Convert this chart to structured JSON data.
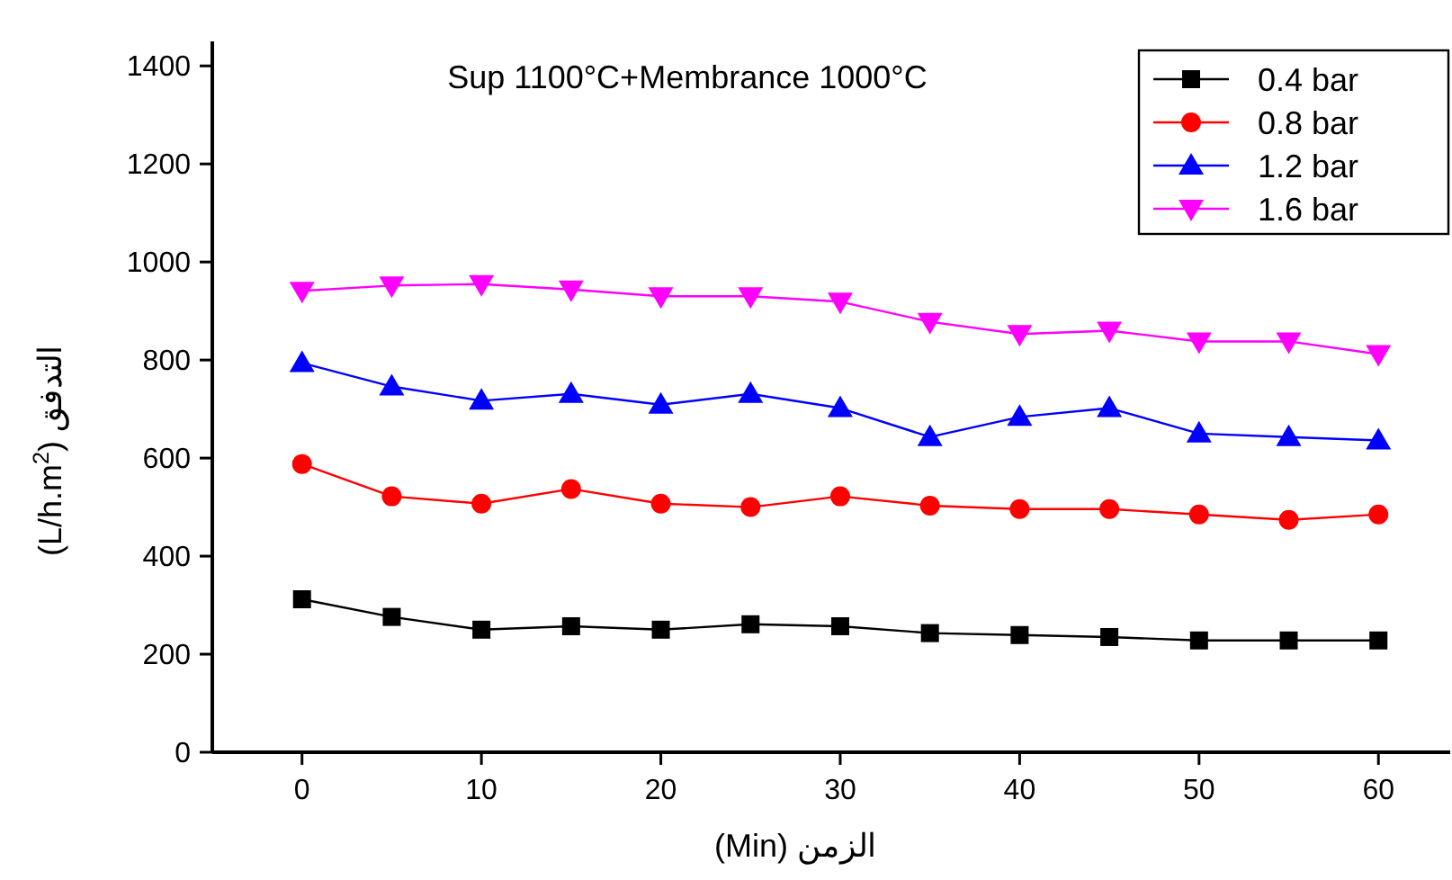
{
  "chart_data": {
    "type": "line",
    "title": "Sup 1100°C+Membrance 1000°C",
    "xlabel": "(Min) الزمن",
    "ylabel": "(L/h.m$^{2}$) التدفق",
    "x": [
      0,
      5,
      10,
      15,
      20,
      25,
      30,
      35,
      40,
      45,
      50,
      55,
      60
    ],
    "xlim": [
      -5,
      64
    ],
    "xticks": [
      0,
      10,
      20,
      30,
      40,
      50,
      60
    ],
    "ylim": [
      0,
      1450
    ],
    "yticks": [
      0,
      200,
      400,
      600,
      800,
      1000,
      1200,
      1400
    ],
    "grid": false,
    "legend": "top right",
    "line_style": "solid",
    "series": [
      {
        "name": "0.4 bar",
        "color": "#000000",
        "marker": "square",
        "values": [
          312,
          276,
          250,
          257,
          250,
          261,
          257,
          243,
          239,
          235,
          228,
          228,
          228
        ]
      },
      {
        "name": "0.8 bar",
        "color": "#ff0000",
        "marker": "circle",
        "values": [
          588,
          522,
          507,
          537,
          507,
          500,
          522,
          503,
          496,
          496,
          485,
          474,
          485
        ]
      },
      {
        "name": "1.2 bar",
        "color": "#0000ff",
        "marker": "triangle",
        "values": [
          794,
          746,
          717,
          731,
          709,
          731,
          702,
          643,
          684,
          702,
          650,
          643,
          636
        ]
      },
      {
        "name": "1.6 bar",
        "color": "#ff00ff",
        "marker": "triangle-down",
        "values": [
          941,
          952,
          955,
          944,
          930,
          930,
          919,
          878,
          853,
          860,
          838,
          838,
          812
        ]
      }
    ]
  }
}
